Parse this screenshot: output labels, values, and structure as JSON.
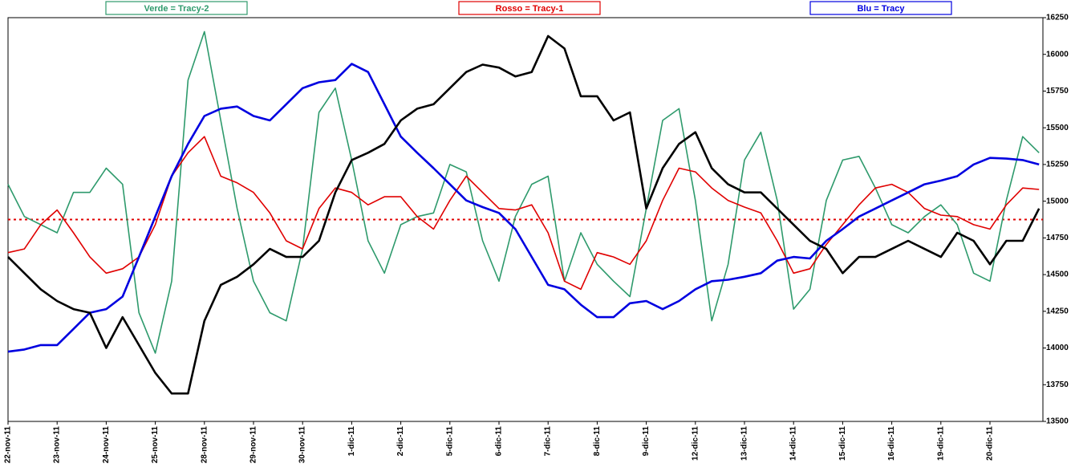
{
  "chart_data": {
    "type": "line",
    "categories": [
      "22-nov-11",
      null,
      null,
      "23-nov-11",
      null,
      null,
      "24-nov-11",
      null,
      null,
      "25-nov-11",
      null,
      null,
      "28-nov-11",
      null,
      null,
      "29-nov-11",
      null,
      null,
      "30-nov-11",
      null,
      null,
      "1-dic-11",
      null,
      null,
      "2-dic-11",
      null,
      null,
      "5-dic-11",
      null,
      null,
      "6-dic-11",
      null,
      null,
      "7-dic-11",
      null,
      null,
      "8-dic-11",
      null,
      null,
      "9-dic-11",
      null,
      null,
      "12-dic-11",
      null,
      null,
      "13-dic-11",
      null,
      null,
      "14-dic-11",
      null,
      null,
      "15-dic-11",
      null,
      null,
      "16-dic-11",
      null,
      null,
      "19-dic-11",
      null,
      null,
      "20-dic-11",
      null,
      null,
      null
    ],
    "series": [
      {
        "name": "Verde = Tracy-2",
        "color": "#2e9a6c",
        "values": [
          15115,
          14895,
          14840,
          14785,
          15060,
          15060,
          15225,
          15115,
          14240,
          13965,
          14455,
          15825,
          16155,
          15550,
          14950,
          14455,
          14240,
          14185,
          14675,
          15605,
          15770,
          15280,
          14730,
          14510,
          14840,
          14895,
          14920,
          15250,
          15200,
          14730,
          14455,
          14895,
          15115,
          15170,
          14455,
          14785,
          14570,
          14455,
          14350,
          14950,
          15550,
          15630,
          15005,
          14185,
          14570,
          15280,
          15470,
          15005,
          14265,
          14400,
          15005,
          15280,
          15305,
          15090,
          14840,
          14785,
          14895,
          14975,
          14840,
          14510,
          14455,
          15005,
          15440,
          15330
        ]
      },
      {
        "name": "Rosso = Tracy-1",
        "color": "#e00000",
        "values": [
          14650,
          14675,
          14840,
          14940,
          14785,
          14620,
          14510,
          14540,
          14620,
          14840,
          15170,
          15330,
          15440,
          15170,
          15125,
          15060,
          14920,
          14730,
          14675,
          14950,
          15090,
          15060,
          14975,
          15030,
          15030,
          14895,
          14810,
          15005,
          15170,
          15060,
          14950,
          14940,
          14975,
          14785,
          14455,
          14400,
          14650,
          14620,
          14570,
          14730,
          15005,
          15225,
          15200,
          15090,
          15005,
          14960,
          14920,
          14730,
          14510,
          14540,
          14705,
          14840,
          14975,
          15090,
          15115,
          15060,
          14950,
          14905,
          14895,
          14840,
          14810,
          14975,
          15090,
          15080
        ]
      },
      {
        "name": "Blu = Tracy",
        "color": "#0000e0",
        "values": [
          13975,
          13990,
          14020,
          14020,
          14130,
          14240,
          14265,
          14350,
          14620,
          14895,
          15170,
          15390,
          15580,
          15630,
          15645,
          15580,
          15550,
          15660,
          15770,
          15810,
          15825,
          15935,
          15880,
          15660,
          15440,
          15330,
          15225,
          15115,
          15005,
          14960,
          14920,
          14810,
          14620,
          14430,
          14400,
          14295,
          14210,
          14210,
          14305,
          14320,
          14265,
          14320,
          14400,
          14455,
          14465,
          14485,
          14510,
          14595,
          14620,
          14610,
          14730,
          14810,
          14895,
          14950,
          15005,
          15060,
          15115,
          15140,
          15170,
          15250,
          15295,
          15290,
          15280,
          15250
        ]
      },
      {
        "color": "#000000",
        "values": [
          14620,
          14510,
          14400,
          14320,
          14265,
          14240,
          14000,
          14210,
          14020,
          13830,
          13690,
          13690,
          14185,
          14430,
          14485,
          14570,
          14675,
          14620,
          14620,
          14730,
          15060,
          15280,
          15330,
          15390,
          15550,
          15630,
          15660,
          15770,
          15880,
          15930,
          15910,
          15850,
          15880,
          16125,
          16040,
          15715,
          15715,
          15550,
          15605,
          14950,
          15225,
          15390,
          15470,
          15225,
          15115,
          15060,
          15060,
          14950,
          14840,
          14730,
          14675,
          14510,
          14620,
          14620,
          14675,
          14730,
          14675,
          14620,
          14785,
          14730,
          14570,
          14730,
          14730,
          14950
        ]
      }
    ],
    "reference_line": 14875,
    "ylim": [
      13500,
      16250
    ],
    "yticks": [
      13500,
      13750,
      14000,
      14250,
      14500,
      14750,
      15000,
      15250,
      15500,
      15750,
      16000,
      16250
    ],
    "y_axis_side": "right"
  }
}
